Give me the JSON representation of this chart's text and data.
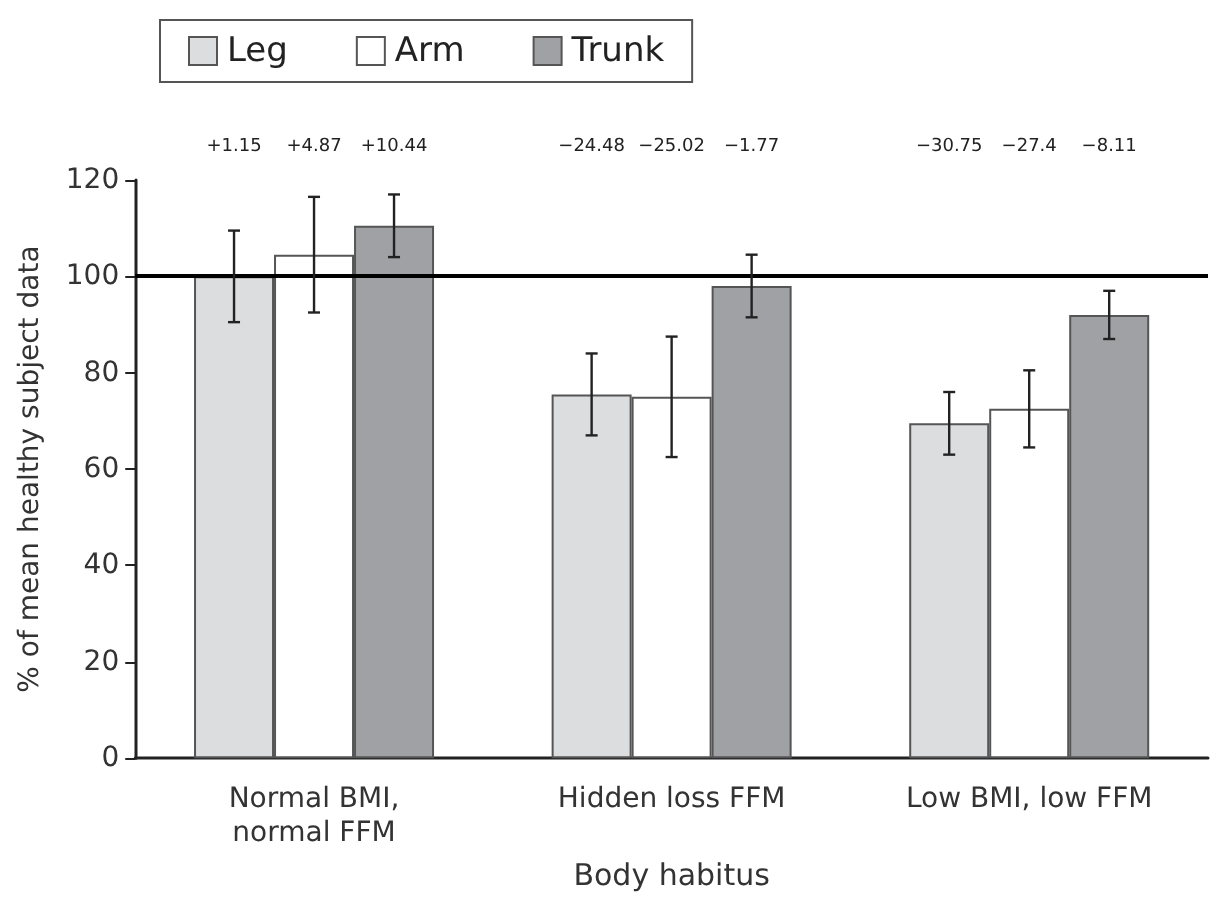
{
  "chart_data": {
    "type": "bar",
    "xlabel": "Body habitus",
    "ylabel": "% of mean healthy subject data",
    "categories": [
      "Normal BMI,\nnormal FFM",
      "Hidden loss FFM",
      "Low BMI, low FFM"
    ],
    "series": [
      {
        "name": "Leg",
        "color": "#dcdddf",
        "values": [
          100,
          75.5,
          69.5
        ],
        "errors": [
          9.5,
          8.5,
          6.5
        ]
      },
      {
        "name": "Arm",
        "color": "#ffffff",
        "values": [
          104.5,
          75,
          72.5
        ],
        "errors": [
          12,
          12.5,
          8
        ]
      },
      {
        "name": "Trunk",
        "color": "#a0a1a5",
        "values": [
          110.5,
          98,
          92
        ],
        "errors": [
          6.5,
          6.5,
          5
        ]
      }
    ],
    "annotations": [
      "+1.15",
      "+4.87",
      "+10.44",
      "−24.48",
      "−25.02",
      "−1.77",
      "−30.75",
      "−27.4",
      "−8.11"
    ],
    "ylim": [
      0,
      120
    ],
    "yticks": [
      0,
      20,
      40,
      60,
      80,
      100,
      120
    ],
    "ref_lines": [
      {
        "axis": "y",
        "value": 100,
        "color": "#000000"
      }
    ],
    "grid": false,
    "legend": "top left"
  }
}
